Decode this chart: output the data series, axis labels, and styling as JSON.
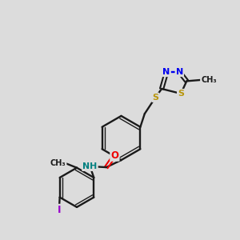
{
  "bg_color": "#dcdcdc",
  "bond_color": "#1a1a1a",
  "N_color": "#0000ee",
  "S_color": "#b8960c",
  "O_color": "#ee0000",
  "I_color": "#9900cc",
  "NH_color": "#008080",
  "xlim": [
    0,
    10
  ],
  "ylim": [
    0,
    10
  ],
  "figsize": [
    3.0,
    3.0
  ],
  "dpi": 100
}
